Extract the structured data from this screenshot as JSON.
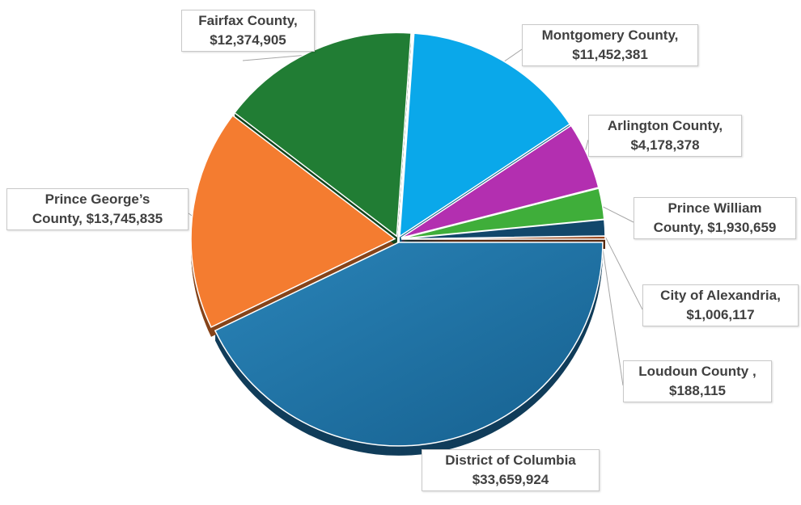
{
  "chart_data": {
    "type": "pie",
    "title": "",
    "slices": [
      {
        "label": "District of Columbia",
        "value": 33659924,
        "value_label": "$33,659,924",
        "color": "#1f6fa3"
      },
      {
        "label": "Prince George’s County",
        "value": 13745835,
        "value_label": "$13,745,835",
        "color": "#f47c30"
      },
      {
        "label": "Fairfax County",
        "value": 12374905,
        "value_label": "$12,374,905",
        "color": "#217d34"
      },
      {
        "label": "Montgomery County",
        "value": 11452381,
        "value_label": "$11,452,381",
        "color": "#0aa8ea"
      },
      {
        "label": "Arlington County",
        "value": 4178378,
        "value_label": "$4,178,378",
        "color": "#b32fb0"
      },
      {
        "label": "Prince William County",
        "value": 1930659,
        "value_label": "$1,930,659",
        "color": "#3fae3a"
      },
      {
        "label": "City of Alexandria",
        "value": 1006117,
        "value_label": "$1,006,117",
        "color": "#12476b"
      },
      {
        "label": "Loudoun County",
        "value": 188115,
        "value_label": "$188,115",
        "color": "#9c4a1f"
      }
    ],
    "legend": "none"
  },
  "labels": {
    "fairfax": [
      "Fairfax County,",
      "$12,374,905"
    ],
    "montgomery": [
      "Montgomery County,",
      "$11,452,381"
    ],
    "arlington": [
      "Arlington County,",
      "$4,178,378"
    ],
    "princewilliam": [
      "Prince William",
      "County, $1,930,659"
    ],
    "alexandria": [
      "City of Alexandria,",
      "$1,006,117"
    ],
    "loudoun": [
      "Loudoun County ,",
      "$188,115"
    ],
    "dc": [
      "District of Columbia",
      "$33,659,924"
    ],
    "pg": [
      "Prince George’s",
      "County, $13,745,835"
    ]
  }
}
